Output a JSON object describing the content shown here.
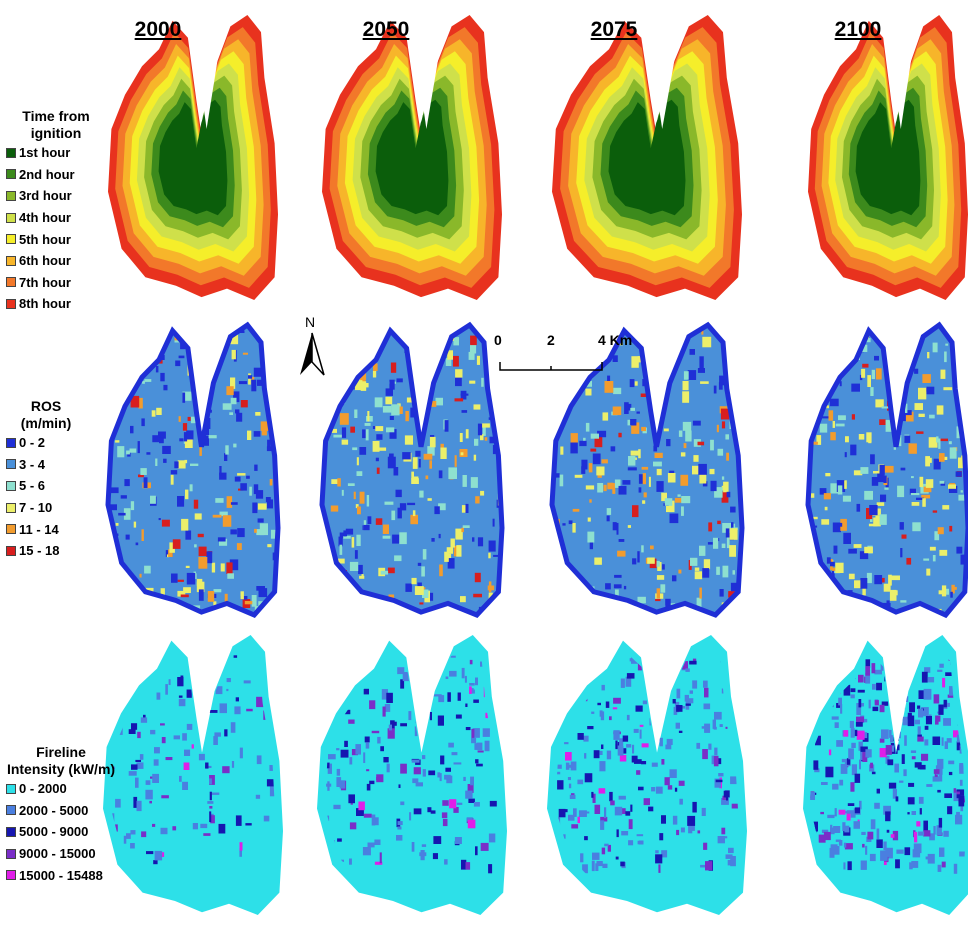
{
  "years": [
    "2000",
    "2050",
    "2075",
    "2100"
  ],
  "legend_time": {
    "title": "Time from ignition",
    "items": [
      {
        "label": "1st hour",
        "color": "#0b5e0b"
      },
      {
        "label": "2nd hour",
        "color": "#3c8a1c"
      },
      {
        "label": "3rd hour",
        "color": "#8ab82a"
      },
      {
        "label": "4th hour",
        "color": "#cfe04a"
      },
      {
        "label": "5th hour",
        "color": "#f5ee2a"
      },
      {
        "label": "6th hour",
        "color": "#f7b52a"
      },
      {
        "label": "7th hour",
        "color": "#f2782a"
      },
      {
        "label": "8th hour",
        "color": "#e8321e"
      }
    ]
  },
  "legend_ros": {
    "title": "ROS (m/min)",
    "items": [
      {
        "label": "0 - 2",
        "color": "#1f2fd6"
      },
      {
        "label": "3 - 4",
        "color": "#4a90d9"
      },
      {
        "label": "5 - 6",
        "color": "#8ee0cf"
      },
      {
        "label": "7 - 10",
        "color": "#ecef6a"
      },
      {
        "label": "11 - 14",
        "color": "#f29c2e"
      },
      {
        "label": "15 - 18",
        "color": "#d81e1e"
      }
    ]
  },
  "legend_fi": {
    "title": "Fireline Intensity (kW/m)",
    "items": [
      {
        "label": "0 - 2000",
        "color": "#2de0e8"
      },
      {
        "label": "2000 - 5000",
        "color": "#4a7fe0"
      },
      {
        "label": "5000 - 9000",
        "color": "#1616b0"
      },
      {
        "label": "9000 - 15000",
        "color": "#7a2ec8"
      },
      {
        "label": "15000 - 15488",
        "color": "#e01ee8"
      }
    ]
  },
  "scalebar": {
    "labels": [
      "0",
      "2",
      "4 Km"
    ]
  },
  "north_label": "N"
}
